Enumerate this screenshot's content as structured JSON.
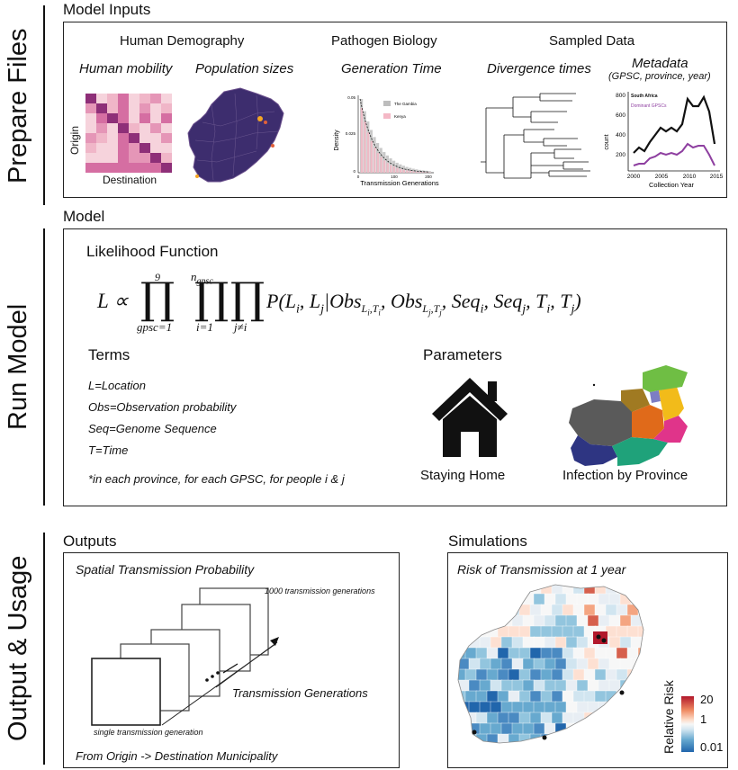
{
  "side_labels": {
    "prepare": "Prepare Files",
    "run": "Run Model",
    "output": "Output & Usage"
  },
  "model_inputs": {
    "title": "Model Inputs",
    "human_demography": "Human Demography",
    "pathogen_biology": "Pathogen Biology",
    "sampled_data": "Sampled Data",
    "human_mobility": "Human mobility",
    "population_sizes": "Population sizes",
    "generation_time": "Generation Time",
    "divergence_times": "Divergence times",
    "metadata": "Metadata",
    "metadata_sub": "(GPSC, province, year)",
    "matrix_ylabel": "Origin",
    "matrix_xlabel": "Destination",
    "hist": {
      "ylabel": "Density",
      "xlabel": "Transmission Generations",
      "legend": [
        "The Gambia",
        "Kenya"
      ],
      "yticks": [
        "0.05",
        "0.025",
        "0"
      ],
      "xticks": [
        "0",
        "100",
        "200"
      ]
    },
    "metadata_chart": {
      "ylabel": "count",
      "xlabel": "Collection Year",
      "legend": [
        "South Africa",
        "Dominant GPSCs"
      ],
      "yticks": [
        "800",
        "600",
        "400",
        "200"
      ],
      "xticks": [
        "2000",
        "2005",
        "2010",
        "2015"
      ],
      "colors": {
        "south_africa": "#111111",
        "dominant": "#8e3fa0"
      }
    }
  },
  "model": {
    "title": "Model",
    "likelihood_title": "Likelihood Function",
    "equation": {
      "lhs": "L ∝",
      "prod1_top": "9",
      "prod1_bottom": "gpsc=1",
      "prod2_top": "n",
      "prod2_top_sub": "gpsc",
      "prod2_bottom": "i=1",
      "prod3_bottom": "j≠i",
      "prod_symbol": "∏",
      "body": "P(L",
      "parts": [
        "i",
        ", L",
        "j",
        "|Obs",
        "L",
        "i",
        ",T",
        "i",
        ", Obs",
        "L",
        "j",
        ",T",
        "j",
        ", Seq",
        "i",
        ", Seq",
        "j",
        ", T",
        "i",
        ", T",
        "j",
        ")"
      ]
    },
    "terms_title": "Terms",
    "terms": [
      "L=Location",
      "Obs=Observation probability",
      "Seq=Genome Sequence",
      "T=Time",
      "*in each province, for each GPSC, for people i & j"
    ],
    "parameters_title": "Parameters",
    "staying_home": "Staying Home",
    "infection_by_province": "Infection by Province"
  },
  "outputs": {
    "title": "Outputs",
    "box_title": "Spatial Transmission Probability",
    "label_1000": "1000 transmission generations",
    "label_generations": "Transmission Generations",
    "label_single": "single transmission generation",
    "footer": "From Origin -> Destination Municipality"
  },
  "simulations": {
    "title": "Simulations",
    "box_title": "Risk of Transmission at 1 year",
    "legend_title": "Relative Risk",
    "legend_ticks": [
      "20",
      "1",
      "0.01"
    ],
    "colors": {
      "high": "#b2182b",
      "mid": "#f7f7f7",
      "low": "#2166ac"
    }
  }
}
